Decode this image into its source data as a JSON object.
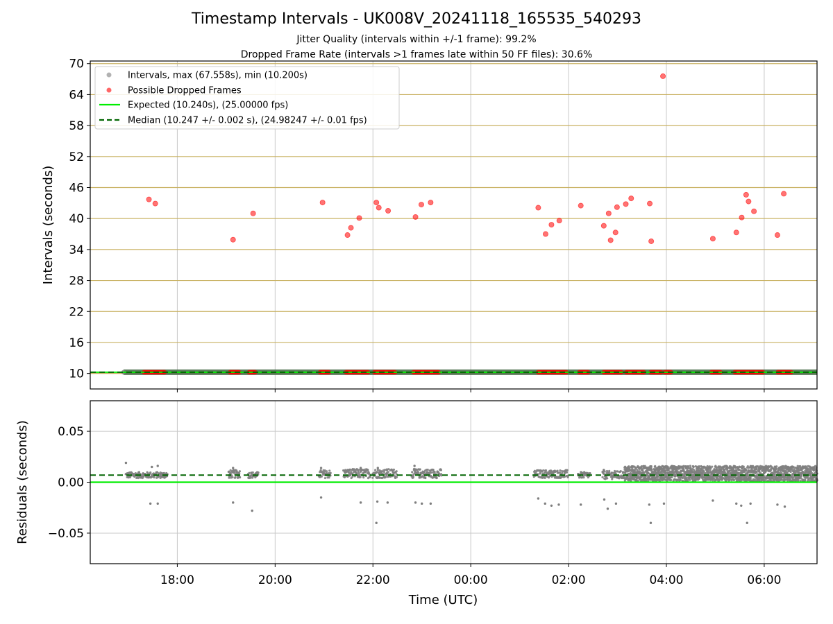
{
  "header": {
    "title": "Timestamp Intervals - UK008V_20241118_165535_540293",
    "subtitle_jitter": "Jitter Quality (intervals within +/-1 frame): 99.2%",
    "subtitle_dropped": "Dropped Frame Rate (intervals >1 frames late within 50 FF files): 30.6%"
  },
  "colors": {
    "intervals": "#7f7f7f",
    "dropped": "#ff0000",
    "expected": "#00ee00",
    "median": "#006400",
    "hline": "#c8b060",
    "grid": "#c8c8c8"
  },
  "chart_data": [
    {
      "type": "scatter",
      "ylabel": "Intervals (seconds)",
      "x_unit": "hours since 2024-11-18 00:00 UTC",
      "xlim": [
        16.22,
        31.08
      ],
      "ylim": [
        7.0,
        70.5
      ],
      "y_ticks": [
        10,
        16,
        22,
        28,
        34,
        40,
        46,
        52,
        58,
        64,
        70
      ],
      "x_ticks": [
        {
          "x": 18,
          "label": "18:00"
        },
        {
          "x": 20,
          "label": "20:00"
        },
        {
          "x": 22,
          "label": "22:00"
        },
        {
          "x": 24,
          "label": "00:00"
        },
        {
          "x": 26,
          "label": "02:00"
        },
        {
          "x": 28,
          "label": "04:00"
        },
        {
          "x": 30,
          "label": "06:00"
        }
      ],
      "grid": "vertical",
      "horizontal_reference_lines": [
        10,
        16,
        22,
        28,
        34,
        40,
        46,
        52,
        58,
        64,
        70
      ],
      "legend_position": "top-left",
      "legend": [
        "Intervals, max (67.558s), min (10.200s)",
        "Possible Dropped Frames",
        "Expected (10.240s), (25.00000 fps)",
        "Median (10.247 +/- 0.002 s), (24.98247 +/- 0.01 fps)"
      ],
      "series": [
        {
          "name": "Intervals, max (67.558s), min (10.200s)",
          "kind": "band",
          "x_range": [
            16.9,
            31.08
          ],
          "y": 10.24
        },
        {
          "name": "Possible Dropped Frames",
          "kind": "points",
          "points": [
            [
              17.42,
              43.7
            ],
            [
              17.55,
              42.9
            ],
            [
              19.14,
              35.9
            ],
            [
              19.55,
              41.0
            ],
            [
              20.97,
              43.1
            ],
            [
              21.48,
              36.8
            ],
            [
              21.55,
              38.2
            ],
            [
              21.72,
              40.1
            ],
            [
              22.07,
              43.1
            ],
            [
              22.12,
              42.1
            ],
            [
              22.31,
              41.5
            ],
            [
              22.87,
              40.3
            ],
            [
              22.99,
              42.7
            ],
            [
              23.18,
              43.1
            ],
            [
              25.38,
              42.1
            ],
            [
              25.53,
              37.0
            ],
            [
              25.65,
              38.8
            ],
            [
              25.81,
              39.6
            ],
            [
              26.25,
              42.5
            ],
            [
              26.72,
              38.6
            ],
            [
              26.82,
              41.0
            ],
            [
              26.86,
              35.8
            ],
            [
              26.96,
              37.3
            ],
            [
              26.99,
              42.2
            ],
            [
              27.17,
              42.8
            ],
            [
              27.28,
              43.9
            ],
            [
              27.66,
              42.9
            ],
            [
              27.69,
              35.6
            ],
            [
              27.93,
              67.56
            ],
            [
              28.95,
              36.1
            ],
            [
              29.43,
              37.3
            ],
            [
              29.54,
              40.2
            ],
            [
              29.63,
              44.6
            ],
            [
              29.68,
              43.3
            ],
            [
              29.79,
              41.4
            ],
            [
              30.27,
              36.8
            ],
            [
              30.4,
              44.8
            ]
          ],
          "clusters_near_10": [
            [
              17.32,
              17.75
            ],
            [
              19.08,
              19.27
            ],
            [
              19.47,
              19.62
            ],
            [
              20.92,
              21.12
            ],
            [
              21.45,
              21.92
            ],
            [
              22.03,
              22.48
            ],
            [
              22.83,
              23.35
            ],
            [
              25.38,
              25.98
            ],
            [
              26.22,
              26.41
            ],
            [
              26.72,
              27.1
            ],
            [
              27.18,
              27.55
            ],
            [
              27.68,
              27.92
            ],
            [
              27.97,
              28.12
            ],
            [
              28.92,
              29.12
            ],
            [
              29.4,
              29.98
            ],
            [
              30.28,
              30.58
            ]
          ],
          "cluster_y": 10.24
        },
        {
          "name": "Expected (10.240s), (25.00000 fps)",
          "kind": "hline",
          "y": 10.24
        },
        {
          "name": "Median (10.247 +/- 0.002 s), (24.98247 +/- 0.01 fps)",
          "kind": "hline-dashed",
          "y": 10.247
        }
      ]
    },
    {
      "type": "scatter",
      "xlabel": "Time (UTC)",
      "ylabel": "Residuals (seconds)",
      "xlim": [
        16.22,
        31.08
      ],
      "ylim": [
        -0.08,
        0.08
      ],
      "y_ticks": [
        {
          "y": 0.05,
          "label": "0.05"
        },
        {
          "y": 0.0,
          "label": "0.00"
        },
        {
          "y": -0.05,
          "label": "−0.05"
        }
      ],
      "grid": "both",
      "series": [
        {
          "name": "Expected (10.240s), (25.00000 fps)",
          "kind": "hline",
          "y": 0.0
        },
        {
          "name": "Median (10.247 +/- 0.002 s), (24.98247 +/- 0.01 fps)",
          "kind": "hline-dashed",
          "y": 0.007
        },
        {
          "name": "Intervals, max (67.558s), min (10.200s)",
          "kind": "residual-clusters",
          "clusters": [
            {
              "x": [
                16.95,
                17.8
              ],
              "y": [
                0.004,
                0.01
              ]
            },
            {
              "x": [
                19.05,
                19.3
              ],
              "y": [
                0.004,
                0.012
              ]
            },
            {
              "x": [
                19.45,
                19.65
              ],
              "y": [
                0.004,
                0.01
              ]
            },
            {
              "x": [
                20.9,
                21.15
              ],
              "y": [
                0.004,
                0.012
              ]
            },
            {
              "x": [
                21.4,
                21.95
              ],
              "y": [
                0.004,
                0.013
              ]
            },
            {
              "x": [
                22.0,
                22.5
              ],
              "y": [
                0.004,
                0.013
              ]
            },
            {
              "x": [
                22.8,
                23.4
              ],
              "y": [
                0.004,
                0.013
              ]
            },
            {
              "x": [
                25.3,
                26.0
              ],
              "y": [
                0.004,
                0.012
              ]
            },
            {
              "x": [
                26.2,
                26.45
              ],
              "y": [
                0.004,
                0.01
              ]
            },
            {
              "x": [
                26.7,
                27.15
              ],
              "y": [
                0.003,
                0.011
              ]
            },
            {
              "x": [
                27.15,
                31.08
              ],
              "y": [
                0.001,
                0.016
              ],
              "dense": true
            }
          ],
          "outliers": [
            [
              16.95,
              0.019
            ],
            [
              17.48,
              0.015
            ],
            [
              17.6,
              0.016
            ],
            [
              17.45,
              -0.021
            ],
            [
              17.6,
              -0.021
            ],
            [
              19.14,
              0.014
            ],
            [
              19.14,
              -0.02
            ],
            [
              19.53,
              -0.028
            ],
            [
              20.94,
              0.014
            ],
            [
              20.94,
              -0.015
            ],
            [
              21.52,
              0.012
            ],
            [
              21.75,
              0.014
            ],
            [
              21.75,
              -0.02
            ],
            [
              22.09,
              -0.019
            ],
            [
              22.07,
              -0.04
            ],
            [
              22.3,
              -0.02
            ],
            [
              22.1,
              0.014
            ],
            [
              22.85,
              0.016
            ],
            [
              22.87,
              -0.02
            ],
            [
              23.0,
              -0.021
            ],
            [
              23.18,
              -0.021
            ],
            [
              25.38,
              -0.016
            ],
            [
              25.52,
              -0.021
            ],
            [
              25.65,
              -0.023
            ],
            [
              25.8,
              -0.022
            ],
            [
              26.25,
              -0.022
            ],
            [
              26.73,
              -0.017
            ],
            [
              26.8,
              -0.026
            ],
            [
              26.97,
              -0.021
            ],
            [
              26.72,
              0.012
            ],
            [
              27.65,
              -0.022
            ],
            [
              27.68,
              -0.04
            ],
            [
              27.95,
              -0.021
            ],
            [
              28.95,
              -0.018
            ],
            [
              29.43,
              -0.021
            ],
            [
              29.53,
              -0.023
            ],
            [
              29.65,
              -0.04
            ],
            [
              29.72,
              -0.021
            ],
            [
              30.27,
              -0.022
            ],
            [
              30.42,
              -0.024
            ]
          ]
        }
      ]
    }
  ]
}
